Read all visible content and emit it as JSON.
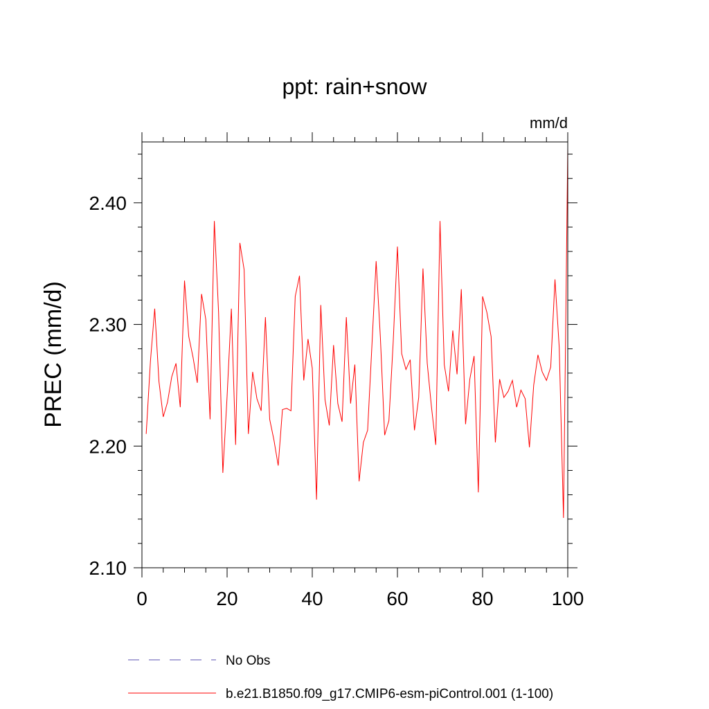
{
  "chart_data": {
    "type": "line",
    "title": "ppt: rain+snow",
    "units_label": "mm/d",
    "ylabel": "PREC  (mm/d)",
    "xlabel": "",
    "xlim": [
      0,
      100
    ],
    "ylim": [
      2.1,
      2.45
    ],
    "x_ticks": [
      {
        "value": 0,
        "label": "0"
      },
      {
        "value": 20,
        "label": "20"
      },
      {
        "value": 40,
        "label": "40"
      },
      {
        "value": 60,
        "label": "60"
      },
      {
        "value": 80,
        "label": "80"
      },
      {
        "value": 100,
        "label": "100"
      }
    ],
    "y_ticks": [
      {
        "value": 2.1,
        "label": "2.10"
      },
      {
        "value": 2.2,
        "label": "2.20"
      },
      {
        "value": 2.3,
        "label": "2.30"
      },
      {
        "value": 2.4,
        "label": "2.40"
      }
    ],
    "grid": false,
    "legend_position": "bottom-left",
    "series": [
      {
        "name": "b.e21.B1850.f09_g17.CMIP6-esm-piControl.001 (1-100)",
        "color": "#ff0000",
        "style": "solid",
        "x": [
          1,
          2,
          3,
          4,
          5,
          6,
          7,
          8,
          9,
          10,
          11,
          12,
          13,
          14,
          15,
          16,
          17,
          18,
          19,
          20,
          21,
          22,
          23,
          24,
          25,
          26,
          27,
          28,
          29,
          30,
          31,
          32,
          33,
          34,
          35,
          36,
          37,
          38,
          39,
          40,
          41,
          42,
          43,
          44,
          45,
          46,
          47,
          48,
          49,
          50,
          51,
          52,
          53,
          54,
          55,
          56,
          57,
          58,
          59,
          60,
          61,
          62,
          63,
          64,
          65,
          66,
          67,
          68,
          69,
          70,
          71,
          72,
          73,
          74,
          75,
          76,
          77,
          78,
          79,
          80,
          81,
          82,
          83,
          84,
          85,
          86,
          87,
          88,
          89,
          90,
          91,
          92,
          93,
          94,
          95,
          96,
          97,
          98,
          99,
          100
        ],
        "values": [
          2.21,
          2.27,
          2.313,
          2.253,
          2.224,
          2.236,
          2.257,
          2.268,
          2.232,
          2.336,
          2.29,
          2.273,
          2.252,
          2.325,
          2.304,
          2.222,
          2.385,
          2.31,
          2.178,
          2.241,
          2.313,
          2.201,
          2.367,
          2.345,
          2.21,
          2.261,
          2.239,
          2.229,
          2.306,
          2.222,
          2.205,
          2.184,
          2.23,
          2.231,
          2.229,
          2.323,
          2.34,
          2.254,
          2.288,
          2.264,
          2.156,
          2.316,
          2.238,
          2.217,
          2.283,
          2.235,
          2.22,
          2.306,
          2.235,
          2.267,
          2.171,
          2.203,
          2.213,
          2.282,
          2.352,
          2.289,
          2.209,
          2.221,
          2.285,
          2.364,
          2.276,
          2.263,
          2.271,
          2.213,
          2.24,
          2.346,
          2.268,
          2.232,
          2.201,
          2.385,
          2.267,
          2.245,
          2.295,
          2.259,
          2.329,
          2.218,
          2.255,
          2.274,
          2.162,
          2.323,
          2.31,
          2.29,
          2.203,
          2.255,
          2.24,
          2.245,
          2.254,
          2.232,
          2.246,
          2.239,
          2.199,
          2.25,
          2.275,
          2.261,
          2.254,
          2.265,
          2.337,
          2.281,
          2.141,
          2.445
        ]
      },
      {
        "name": "No Obs",
        "color": "#5a4fb0",
        "style": "dashed",
        "x": [],
        "values": []
      }
    ]
  }
}
